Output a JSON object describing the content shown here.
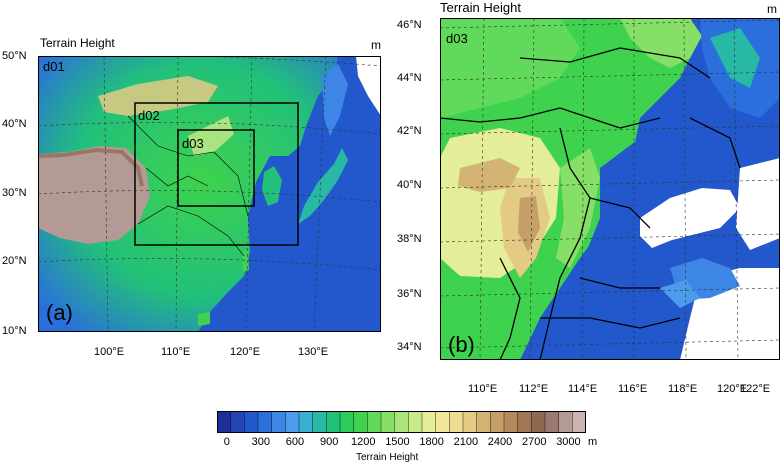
{
  "panel_a": {
    "title": "Terrain Height",
    "unit": "m",
    "label": "(a)",
    "domains": [
      "d01",
      "d02",
      "d03"
    ],
    "lat_ticks": [
      "50°N",
      "40°N",
      "30°N",
      "20°N",
      "10°N"
    ],
    "lon_ticks": [
      "100°E",
      "110°E",
      "120°E",
      "130°E"
    ]
  },
  "panel_b": {
    "title": "Terrain Height",
    "unit": "m",
    "label": "(b)",
    "domain": "d03",
    "lat_ticks": [
      "46°N",
      "44°N",
      "42°N",
      "40°N",
      "38°N",
      "36°N",
      "34°N"
    ],
    "lon_ticks": [
      "110°E",
      "112°E",
      "114°E",
      "116°E",
      "118°E",
      "120°E",
      "122°E"
    ]
  },
  "colorbar": {
    "ticks": [
      "0",
      "300",
      "600",
      "900",
      "1200",
      "1500",
      "1800",
      "2100",
      "2400",
      "2700",
      "3000"
    ],
    "unit": "m",
    "label": "Terrain Height",
    "colors": [
      "#1f2f99",
      "#2244b4",
      "#2358cc",
      "#2a6fdc",
      "#3d86e6",
      "#4c9ceb",
      "#39afd3",
      "#28b8a6",
      "#22c07a",
      "#2ccb5a",
      "#3fd24e",
      "#61d95a",
      "#86df66",
      "#a9e57a",
      "#c8ea8a",
      "#e4ee98",
      "#f1e79a",
      "#eedb94",
      "#e3ca85",
      "#d4b474",
      "#c59f67",
      "#b48a5d",
      "#a07654",
      "#8f6850",
      "#9a7a70",
      "#b39a94",
      "#c9b4b0"
    ]
  }
}
